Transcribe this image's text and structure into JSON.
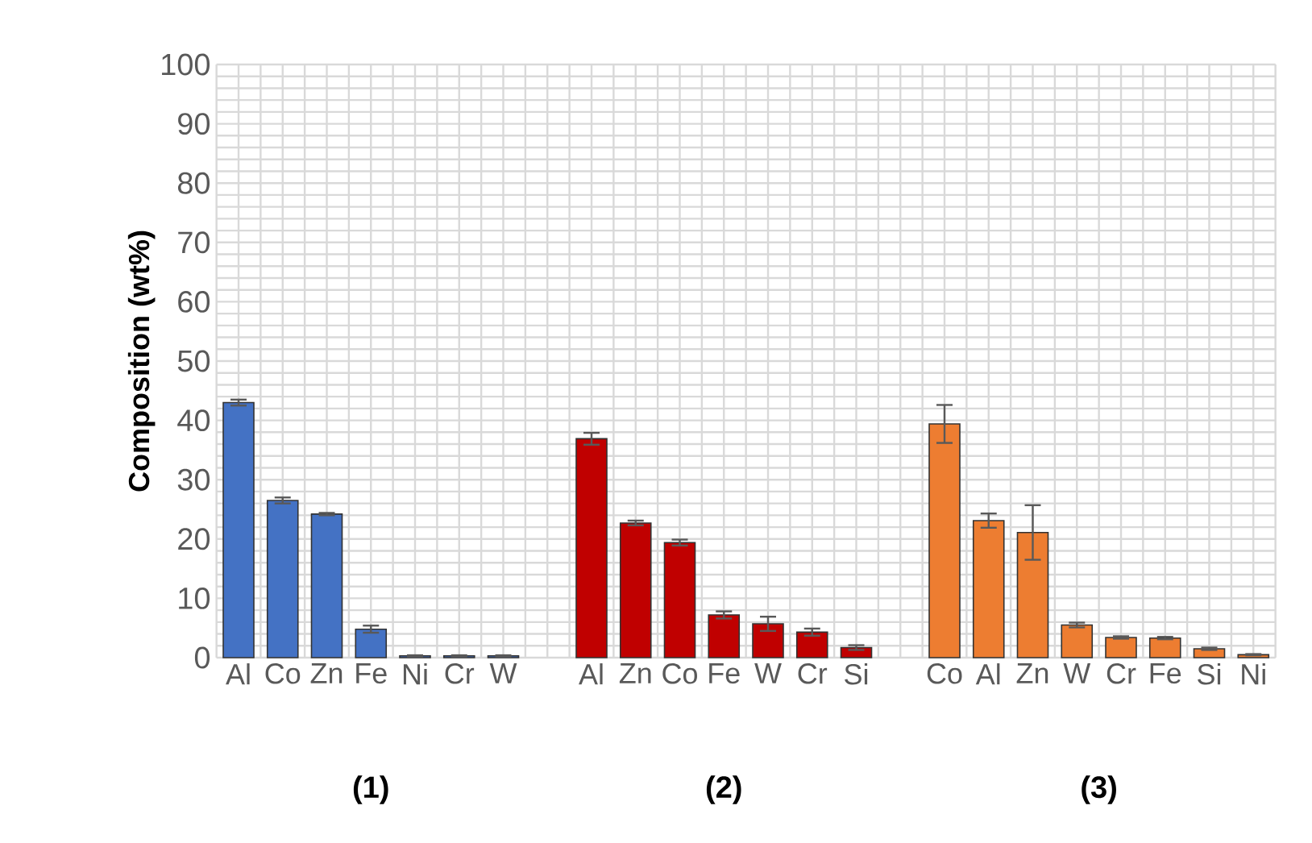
{
  "chart_data": {
    "type": "bar",
    "ylabel": "Composition (wt%)",
    "categories": [
      "Al",
      "Co",
      "Zn",
      "Fe",
      "Ni",
      "Cr",
      "W",
      null,
      "Al",
      "Zn",
      "Co",
      "Fe",
      "W",
      "Cr",
      "Si",
      null,
      "Co",
      "Al",
      "Zn",
      "W",
      "Cr",
      "Fe",
      "Si",
      "Ni"
    ],
    "values": [
      43,
      26.5,
      24.2,
      4.8,
      0.3,
      0.3,
      0.3,
      null,
      36.9,
      22.7,
      19.4,
      7.2,
      5.7,
      4.3,
      1.7,
      null,
      39.4,
      23.1,
      21.1,
      5.5,
      3.4,
      3.3,
      1.5,
      0.5
    ],
    "errors": [
      0.5,
      0.5,
      0.2,
      0.6,
      0.1,
      0.1,
      0.1,
      null,
      1.0,
      0.4,
      0.5,
      0.6,
      1.2,
      0.6,
      0.4,
      null,
      3.2,
      1.2,
      4.6,
      0.4,
      0.2,
      0.2,
      0.2,
      0.1
    ],
    "colors": [
      "#4472c4",
      "#4472c4",
      "#4472c4",
      "#4472c4",
      "#4472c4",
      "#4472c4",
      "#4472c4",
      null,
      "#c00000",
      "#c00000",
      "#c00000",
      "#c00000",
      "#c00000",
      "#c00000",
      "#c00000",
      null,
      "#ed7d31",
      "#ed7d31",
      "#ed7d31",
      "#ed7d31",
      "#ed7d31",
      "#ed7d31",
      "#ed7d31",
      "#ed7d31"
    ],
    "ylim": [
      0,
      100
    ],
    "yticks": [
      0,
      10,
      20,
      30,
      40,
      50,
      60,
      70,
      80,
      90,
      100
    ],
    "grid": true,
    "annotations": [
      "(1)",
      "(2)",
      "(3)"
    ]
  }
}
